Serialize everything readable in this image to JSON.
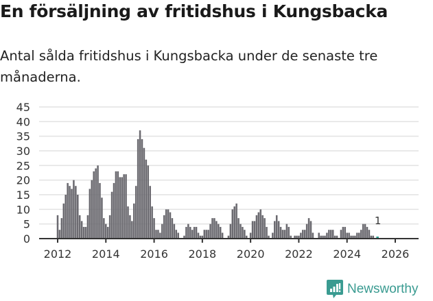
{
  "header": {
    "title": "En försäljning av fritidshus i Kungsbacka",
    "subtitle": "Antal sålda fritidshus i Kungsbacka under de senaste tre månaderna."
  },
  "brand": {
    "name": "Newsworthy",
    "color": "#3a9b91",
    "icon": "newsworthy-logo-icon"
  },
  "colors": {
    "bar": "#6b6a70",
    "highlight": "#2a9d8f",
    "grid": "#e2e2e2",
    "axis": "#333333"
  },
  "chart_data": {
    "type": "bar",
    "title": "En försäljning av fritidshus i Kungsbacka",
    "subtitle": "Antal sålda fritidshus i Kungsbacka under de senaste tre månaderna.",
    "xlabel": "",
    "ylabel": "",
    "ylim": [
      0,
      45
    ],
    "yticks": [
      0,
      5,
      10,
      15,
      20,
      25,
      30,
      35,
      40,
      45
    ],
    "xticks": [
      "2012",
      "2014",
      "2016",
      "2018",
      "2020",
      "2022",
      "2024",
      "2026"
    ],
    "grid": true,
    "legend": null,
    "annotation": {
      "label": "1",
      "at": "2026-02"
    },
    "start": "2012-01",
    "frequency": "monthly",
    "values": [
      8,
      3,
      7,
      12,
      15,
      19,
      18,
      17,
      20,
      18,
      15,
      8,
      6,
      4,
      4,
      8,
      17,
      20,
      23,
      24,
      25,
      19,
      14,
      7,
      5,
      4,
      8,
      16,
      19,
      23,
      23,
      21,
      21,
      22,
      22,
      11,
      8,
      6,
      12,
      18,
      34,
      37,
      34,
      31,
      27,
      25,
      18,
      11,
      7,
      3,
      3,
      2,
      5,
      8,
      10,
      10,
      9,
      7,
      5,
      3,
      2,
      0,
      0,
      1,
      4,
      5,
      4,
      3,
      4,
      4,
      2,
      1,
      1,
      3,
      3,
      3,
      5,
      7,
      7,
      6,
      5,
      4,
      2,
      0,
      0,
      1,
      5,
      10,
      11,
      12,
      7,
      5,
      4,
      3,
      1,
      0,
      2,
      6,
      6,
      8,
      9,
      10,
      8,
      7,
      4,
      1,
      0,
      2,
      6,
      8,
      6,
      4,
      3,
      3,
      5,
      4,
      1,
      0,
      1,
      1,
      1,
      2,
      3,
      3,
      5,
      7,
      6,
      2,
      0,
      0,
      2,
      1,
      1,
      1,
      2,
      3,
      3,
      3,
      1,
      1,
      0,
      3,
      4,
      4,
      2,
      2,
      1,
      1,
      1,
      2,
      2,
      3,
      5,
      5,
      4,
      3,
      1,
      1,
      0,
      0
    ],
    "highlight_last": 1
  }
}
